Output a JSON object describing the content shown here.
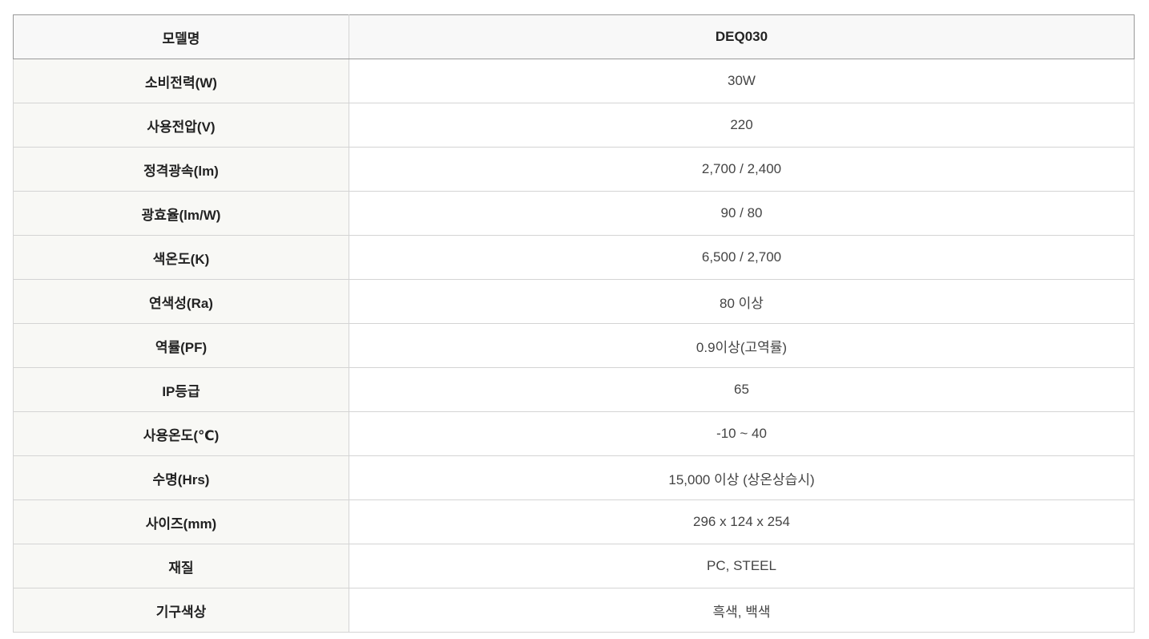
{
  "header": {
    "label": "모델명",
    "value": "DEQ030"
  },
  "rows": [
    {
      "label": "소비전력(W)",
      "value": "30W"
    },
    {
      "label": "사용전압(V)",
      "value": "220"
    },
    {
      "label": "정격광속(lm)",
      "value": "2,700 / 2,400"
    },
    {
      "label": "광효율(lm/W)",
      "value": "90 / 80"
    },
    {
      "label": "색온도(K)",
      "value": "6,500 / 2,700"
    },
    {
      "label": "연색성(Ra)",
      "value": "80 이상"
    },
    {
      "label": "역률(PF)",
      "value": "0.9이상(고역률)"
    },
    {
      "label": "IP등급",
      "value": "65"
    },
    {
      "label": "사용온도(℃)",
      "value": "-10 ~ 40"
    },
    {
      "label": "수명(Hrs)",
      "value": "15,000 이상 (상온상습시)"
    },
    {
      "label": "사이즈(mm)",
      "value": "296 x 124 x 254"
    },
    {
      "label": "재질",
      "value": "PC, STEEL"
    },
    {
      "label": "기구색상",
      "value": "흑색, 백색"
    }
  ]
}
